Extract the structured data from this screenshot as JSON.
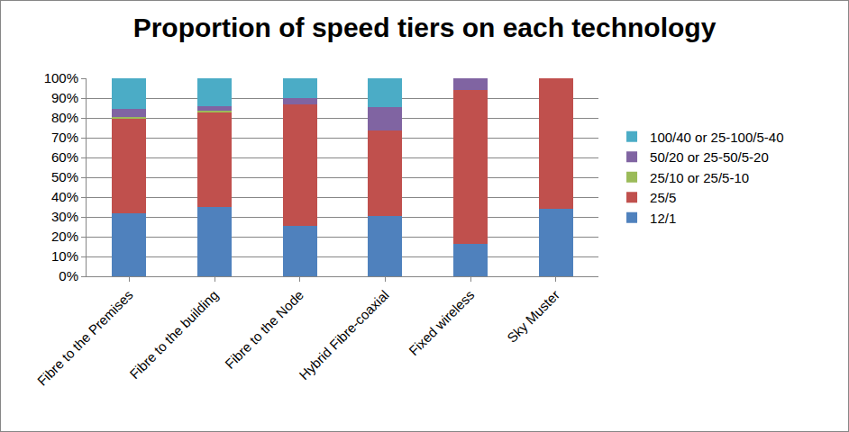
{
  "chart_data": {
    "type": "bar",
    "title": "Proportion of speed tiers on each technology",
    "categories": [
      "Fibre to the Premises",
      "Fibre to the building",
      "Fibre to the Node",
      "Hybrid Fibre-coaxial",
      "Fixed wireless",
      "Sky Muster"
    ],
    "series": [
      {
        "name": "12/1",
        "color": "#4F81BD",
        "values": [
          32,
          35,
          25.5,
          30.5,
          16.5,
          34
        ]
      },
      {
        "name": "25/5",
        "color": "#C0504D",
        "values": [
          47.5,
          48,
          61.5,
          43,
          77.5,
          66
        ]
      },
      {
        "name": "25/10 or 25/5-10",
        "color": "#9BBB59",
        "values": [
          1,
          0.5,
          0,
          0,
          0,
          0
        ]
      },
      {
        "name": "50/20 or 25-50/5-20",
        "color": "#8064A2",
        "values": [
          4,
          2.5,
          3,
          12,
          6,
          0
        ]
      },
      {
        "name": "100/40 or 25-100/5-40",
        "color": "#4BACC6",
        "values": [
          15.5,
          14,
          10,
          14.5,
          0,
          0
        ]
      }
    ],
    "ylim": [
      0,
      100
    ],
    "yticks": [
      {
        "value": 0,
        "label": "0%"
      },
      {
        "value": 10,
        "label": "10%"
      },
      {
        "value": 20,
        "label": "20%"
      },
      {
        "value": 30,
        "label": "30%"
      },
      {
        "value": 40,
        "label": "40%"
      },
      {
        "value": 50,
        "label": "50%"
      },
      {
        "value": 60,
        "label": "60%"
      },
      {
        "value": 70,
        "label": "70%"
      },
      {
        "value": 80,
        "label": "80%"
      },
      {
        "value": 90,
        "label": "90%"
      },
      {
        "value": 100,
        "label": "100%"
      }
    ],
    "stacked": true,
    "grid": true,
    "legend": "right"
  }
}
